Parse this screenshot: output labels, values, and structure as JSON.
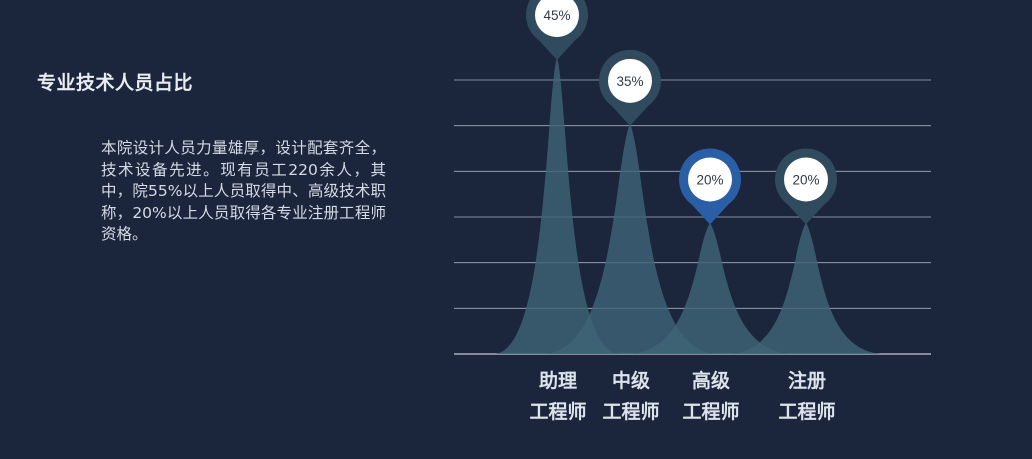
{
  "heading": "专业技术人员占比",
  "description": "本院设计人员力量雄厚，设计配套齐全，技术设备先进。现有员工220余人，其中，院55%以上人员取得中、高级技术职称，20%以上人员取得各专业注册工程师资格。",
  "colors": {
    "background": "#1b253c",
    "peak": "#3e6476",
    "pin_default": "#2f4b5d",
    "pin_highlight": "#2a5fa5",
    "gridline": "#d8dee6"
  },
  "chart_data": {
    "type": "area",
    "categories": [
      {
        "line1": "助理",
        "line2": "工程师"
      },
      {
        "line1": "中级",
        "line2": "工程师"
      },
      {
        "line1": "高级",
        "line2": "工程师"
      },
      {
        "line1": "注册",
        "line2": "工程师"
      }
    ],
    "values": [
      45,
      35,
      20,
      20
    ],
    "value_labels": [
      "45%",
      "35%",
      "20%",
      "20%"
    ],
    "highlight_index": 2,
    "ylim": [
      0,
      50
    ],
    "grid": true,
    "legend": "none"
  }
}
